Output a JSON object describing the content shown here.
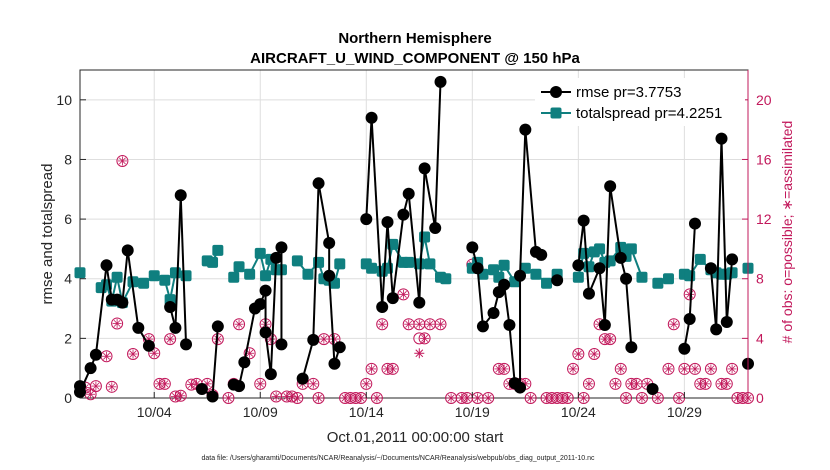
{
  "chart_data": {
    "type": "line",
    "title_line1": "Northern Hemisphere",
    "title_line2": "AIRCRAFT_U_WIND_COMPONENT @ 150 hPa",
    "xlabel": "Oct.01,2011 00:00:00 start",
    "ylabel_left": "rmse and totalspread",
    "ylabel_right": "# of obs: o=possible; ∗=assimilated",
    "xlim": [
      0,
      31.5
    ],
    "ylim_left": [
      0,
      11
    ],
    "ylim_right": [
      0,
      22
    ],
    "x_ticks": [
      {
        "value": 3.5,
        "label": "10/04"
      },
      {
        "value": 8.5,
        "label": "10/09"
      },
      {
        "value": 13.5,
        "label": "10/14"
      },
      {
        "value": 18.5,
        "label": "10/19"
      },
      {
        "value": 23.5,
        "label": "10/24"
      },
      {
        "value": 28.5,
        "label": "10/29"
      }
    ],
    "y_ticks_left": [
      {
        "value": 0,
        "label": "0"
      },
      {
        "value": 2,
        "label": "2"
      },
      {
        "value": 4,
        "label": "4"
      },
      {
        "value": 6,
        "label": "6"
      },
      {
        "value": 8,
        "label": "8"
      },
      {
        "value": 10,
        "label": "10"
      }
    ],
    "y_ticks_right": [
      {
        "value": 0,
        "label": "0"
      },
      {
        "value": 4,
        "label": "4"
      },
      {
        "value": 8,
        "label": "8"
      },
      {
        "value": 12,
        "label": "12"
      },
      {
        "value": 16,
        "label": "16"
      },
      {
        "value": 20,
        "label": "20"
      }
    ],
    "legend": {
      "placement": "top-right",
      "entries": [
        "rmse pr=3.7753",
        "totalspread pr=4.2251"
      ]
    },
    "colors": {
      "rmse": "#000000",
      "totalspread": "#0f7f7f",
      "obs": "#c2185b",
      "grid": "#dedede"
    },
    "series": [
      {
        "name": "rmse",
        "points": [
          [
            0.0,
            0.4
          ],
          [
            0.0,
            0.2
          ],
          [
            0.5,
            1.0
          ],
          [
            0.75,
            1.45
          ],
          [
            1.25,
            4.45
          ],
          [
            1.5,
            3.3
          ],
          [
            1.75,
            3.3
          ],
          [
            2.0,
            3.2
          ],
          [
            2.25,
            4.95
          ],
          [
            2.75,
            2.35
          ],
          [
            3.25,
            1.75
          ],
          [
            4.25,
            3.05
          ],
          [
            4.5,
            2.35
          ],
          [
            4.75,
            6.8
          ],
          [
            5.0,
            1.8
          ],
          [
            5.75,
            0.3
          ],
          [
            6.25,
            0.05
          ],
          [
            6.5,
            2.4
          ],
          [
            7.25,
            0.45
          ],
          [
            7.5,
            0.4
          ],
          [
            7.75,
            1.2
          ],
          [
            8.25,
            3.0
          ],
          [
            8.5,
            3.15
          ],
          [
            8.75,
            3.6
          ],
          [
            8.75,
            2.2
          ],
          [
            9.0,
            0.8
          ],
          [
            9.25,
            4.7
          ],
          [
            9.5,
            5.05
          ],
          [
            9.5,
            1.8
          ],
          [
            10.5,
            0.65
          ],
          [
            11.0,
            1.95
          ],
          [
            11.25,
            7.2
          ],
          [
            11.75,
            5.2
          ],
          [
            11.75,
            4.1
          ],
          [
            12.0,
            1.15
          ],
          [
            12.25,
            1.7
          ],
          [
            13.5,
            6.0
          ],
          [
            13.75,
            9.4
          ],
          [
            14.25,
            3.05
          ],
          [
            14.5,
            5.9
          ],
          [
            14.75,
            3.35
          ],
          [
            15.25,
            6.15
          ],
          [
            15.5,
            6.85
          ],
          [
            16.0,
            3.2
          ],
          [
            16.25,
            7.7
          ],
          [
            16.75,
            5.7
          ],
          [
            17.0,
            10.6
          ],
          [
            18.5,
            5.05
          ],
          [
            18.75,
            4.35
          ],
          [
            19.0,
            2.4
          ],
          [
            19.5,
            2.85
          ],
          [
            19.75,
            3.55
          ],
          [
            20.0,
            3.8
          ],
          [
            20.25,
            2.45
          ],
          [
            20.5,
            0.5
          ],
          [
            20.75,
            0.35
          ],
          [
            20.75,
            4.1
          ],
          [
            21.0,
            9.0
          ],
          [
            21.5,
            4.9
          ],
          [
            21.75,
            4.8
          ],
          [
            22.5,
            3.95
          ],
          [
            23.5,
            4.45
          ],
          [
            23.75,
            5.95
          ],
          [
            24.0,
            3.5
          ],
          [
            24.5,
            4.35
          ],
          [
            24.75,
            2.45
          ],
          [
            25.0,
            7.1
          ],
          [
            25.5,
            4.7
          ],
          [
            25.75,
            4.0
          ],
          [
            26.0,
            1.7
          ],
          [
            27.0,
            0.3
          ],
          [
            28.5,
            1.65
          ],
          [
            28.75,
            2.65
          ],
          [
            29.0,
            5.85
          ],
          [
            29.75,
            4.35
          ],
          [
            30.0,
            2.3
          ],
          [
            30.25,
            8.7
          ],
          [
            30.5,
            2.55
          ],
          [
            30.75,
            4.65
          ],
          [
            31.5,
            1.15
          ]
        ]
      },
      {
        "name": "totalspread",
        "points": [
          [
            0.0,
            4.2
          ],
          [
            1.0,
            3.7
          ],
          [
            1.25,
            3.8
          ],
          [
            1.5,
            3.25
          ],
          [
            1.75,
            4.05
          ],
          [
            2.0,
            3.2
          ],
          [
            2.5,
            3.9
          ],
          [
            3.0,
            3.85
          ],
          [
            3.5,
            4.1
          ],
          [
            4.0,
            3.95
          ],
          [
            4.25,
            3.3
          ],
          [
            4.5,
            4.2
          ],
          [
            5.0,
            4.1
          ],
          [
            6.0,
            4.6
          ],
          [
            6.25,
            4.55
          ],
          [
            6.5,
            4.95
          ],
          [
            7.25,
            4.05
          ],
          [
            7.5,
            4.4
          ],
          [
            8.0,
            4.15
          ],
          [
            8.5,
            4.85
          ],
          [
            8.75,
            4.1
          ],
          [
            9.0,
            4.65
          ],
          [
            9.25,
            4.3
          ],
          [
            9.5,
            4.3
          ],
          [
            10.25,
            4.6
          ],
          [
            10.75,
            4.15
          ],
          [
            11.25,
            4.55
          ],
          [
            11.5,
            4.0
          ],
          [
            11.75,
            3.95
          ],
          [
            12.0,
            3.85
          ],
          [
            12.25,
            4.5
          ],
          [
            13.5,
            4.5
          ],
          [
            13.75,
            4.35
          ],
          [
            14.25,
            4.25
          ],
          [
            14.5,
            4.35
          ],
          [
            14.75,
            5.15
          ],
          [
            15.25,
            4.55
          ],
          [
            15.5,
            4.55
          ],
          [
            16.0,
            4.5
          ],
          [
            16.25,
            5.4
          ],
          [
            16.5,
            4.5
          ],
          [
            17.0,
            4.05
          ],
          [
            17.25,
            4.0
          ],
          [
            18.5,
            4.35
          ],
          [
            18.75,
            4.55
          ],
          [
            19.0,
            4.15
          ],
          [
            19.5,
            4.3
          ],
          [
            19.75,
            4.05
          ],
          [
            20.0,
            4.45
          ],
          [
            20.5,
            3.9
          ],
          [
            21.0,
            4.35
          ],
          [
            21.5,
            4.15
          ],
          [
            22.0,
            3.85
          ],
          [
            22.5,
            4.15
          ],
          [
            23.5,
            4.05
          ],
          [
            23.75,
            4.85
          ],
          [
            24.0,
            4.4
          ],
          [
            24.25,
            4.9
          ],
          [
            24.5,
            5.0
          ],
          [
            24.75,
            4.55
          ],
          [
            25.0,
            4.6
          ],
          [
            25.5,
            5.05
          ],
          [
            25.75,
            4.75
          ],
          [
            26.0,
            5.0
          ],
          [
            26.5,
            4.05
          ],
          [
            27.25,
            3.85
          ],
          [
            27.75,
            4.0
          ],
          [
            28.5,
            4.15
          ],
          [
            28.75,
            4.1
          ],
          [
            29.25,
            4.65
          ],
          [
            29.75,
            4.3
          ],
          [
            30.0,
            4.2
          ],
          [
            30.25,
            4.15
          ],
          [
            30.5,
            4.15
          ],
          [
            30.75,
            4.2
          ],
          [
            31.5,
            4.35
          ]
        ]
      }
    ],
    "obs_possible": [
      [
        0.25,
        0.7
      ],
      [
        0.5,
        0.25
      ],
      [
        0.75,
        0.8
      ],
      [
        1.25,
        2.8
      ],
      [
        1.5,
        0.75
      ],
      [
        1.75,
        5.0
      ],
      [
        2.0,
        15.9
      ],
      [
        2.5,
        2.95
      ],
      [
        3.25,
        3.95
      ],
      [
        3.5,
        3.0
      ],
      [
        3.75,
        0.95
      ],
      [
        4.0,
        0.95
      ],
      [
        4.25,
        3.95
      ],
      [
        4.5,
        0.1
      ],
      [
        4.75,
        0.15
      ],
      [
        5.25,
        0.9
      ],
      [
        5.5,
        0.95
      ],
      [
        6.0,
        0.95
      ],
      [
        6.25,
        0.2
      ],
      [
        6.5,
        3.95
      ],
      [
        7.0,
        0.0
      ],
      [
        7.25,
        0.95
      ],
      [
        7.5,
        4.95
      ],
      [
        8.0,
        3.0
      ],
      [
        8.5,
        0.95
      ],
      [
        8.75,
        4.95
      ],
      [
        9.0,
        3.95
      ],
      [
        9.25,
        0.1
      ],
      [
        9.75,
        0.1
      ],
      [
        10.0,
        0.1
      ],
      [
        10.25,
        0.0
      ],
      [
        10.5,
        0.95
      ],
      [
        11.0,
        0.95
      ],
      [
        11.25,
        0.0
      ],
      [
        11.5,
        3.95
      ],
      [
        12.0,
        3.95
      ],
      [
        12.5,
        0.0
      ],
      [
        12.75,
        0.0
      ],
      [
        13.0,
        0.0
      ],
      [
        13.25,
        0.0
      ],
      [
        13.5,
        0.95
      ],
      [
        13.75,
        1.95
      ],
      [
        14.0,
        0.0
      ],
      [
        14.25,
        4.95
      ],
      [
        14.5,
        1.95
      ],
      [
        14.75,
        1.95
      ],
      [
        15.25,
        6.95
      ],
      [
        15.5,
        4.95
      ],
      [
        16.0,
        4.95
      ],
      [
        16.25,
        4.0
      ],
      [
        16.5,
        4.95
      ],
      [
        17.0,
        4.95
      ],
      [
        17.5,
        0.0
      ],
      [
        18.0,
        0.0
      ],
      [
        18.25,
        0.0
      ],
      [
        18.5,
        8.95
      ],
      [
        18.75,
        0.0
      ],
      [
        19.25,
        0.0
      ],
      [
        19.75,
        1.95
      ],
      [
        20.0,
        1.95
      ],
      [
        20.25,
        0.95
      ],
      [
        20.5,
        0.95
      ],
      [
        20.75,
        0.95
      ],
      [
        21.0,
        0.95
      ],
      [
        21.25,
        0.0
      ],
      [
        22.0,
        0.0
      ],
      [
        22.25,
        0.0
      ],
      [
        22.5,
        0.0
      ],
      [
        22.75,
        0.0
      ],
      [
        23.0,
        0.0
      ],
      [
        23.25,
        1.95
      ],
      [
        23.5,
        2.95
      ],
      [
        23.75,
        0.0
      ],
      [
        24.0,
        0.95
      ],
      [
        24.25,
        2.95
      ],
      [
        24.5,
        4.95
      ],
      [
        24.75,
        3.95
      ],
      [
        25.0,
        3.95
      ],
      [
        25.25,
        0.95
      ],
      [
        25.5,
        1.95
      ],
      [
        25.75,
        0.0
      ],
      [
        26.0,
        0.95
      ],
      [
        26.25,
        0.95
      ],
      [
        26.5,
        0.0
      ],
      [
        26.75,
        0.95
      ],
      [
        27.25,
        0.0
      ],
      [
        27.75,
        1.95
      ],
      [
        28.0,
        4.95
      ],
      [
        28.25,
        0.0
      ],
      [
        28.5,
        1.95
      ],
      [
        28.75,
        6.95
      ],
      [
        29.0,
        1.95
      ],
      [
        29.25,
        0.95
      ],
      [
        29.5,
        0.95
      ],
      [
        29.75,
        1.95
      ],
      [
        30.25,
        0.95
      ],
      [
        30.5,
        0.95
      ],
      [
        30.75,
        1.95
      ],
      [
        31.0,
        0.0
      ],
      [
        31.25,
        0.0
      ],
      [
        31.5,
        0.0
      ],
      [
        16.0,
        4.0
      ]
    ],
    "obs_assimilated": [
      [
        16.0,
        3.0
      ]
    ]
  },
  "footnote": "data file: /Users/gharamti/Documents/NCAR/Reanalysis/~/Documents/NCAR/Reanalysis/webpub/obs_diag_output_2011-10.nc"
}
